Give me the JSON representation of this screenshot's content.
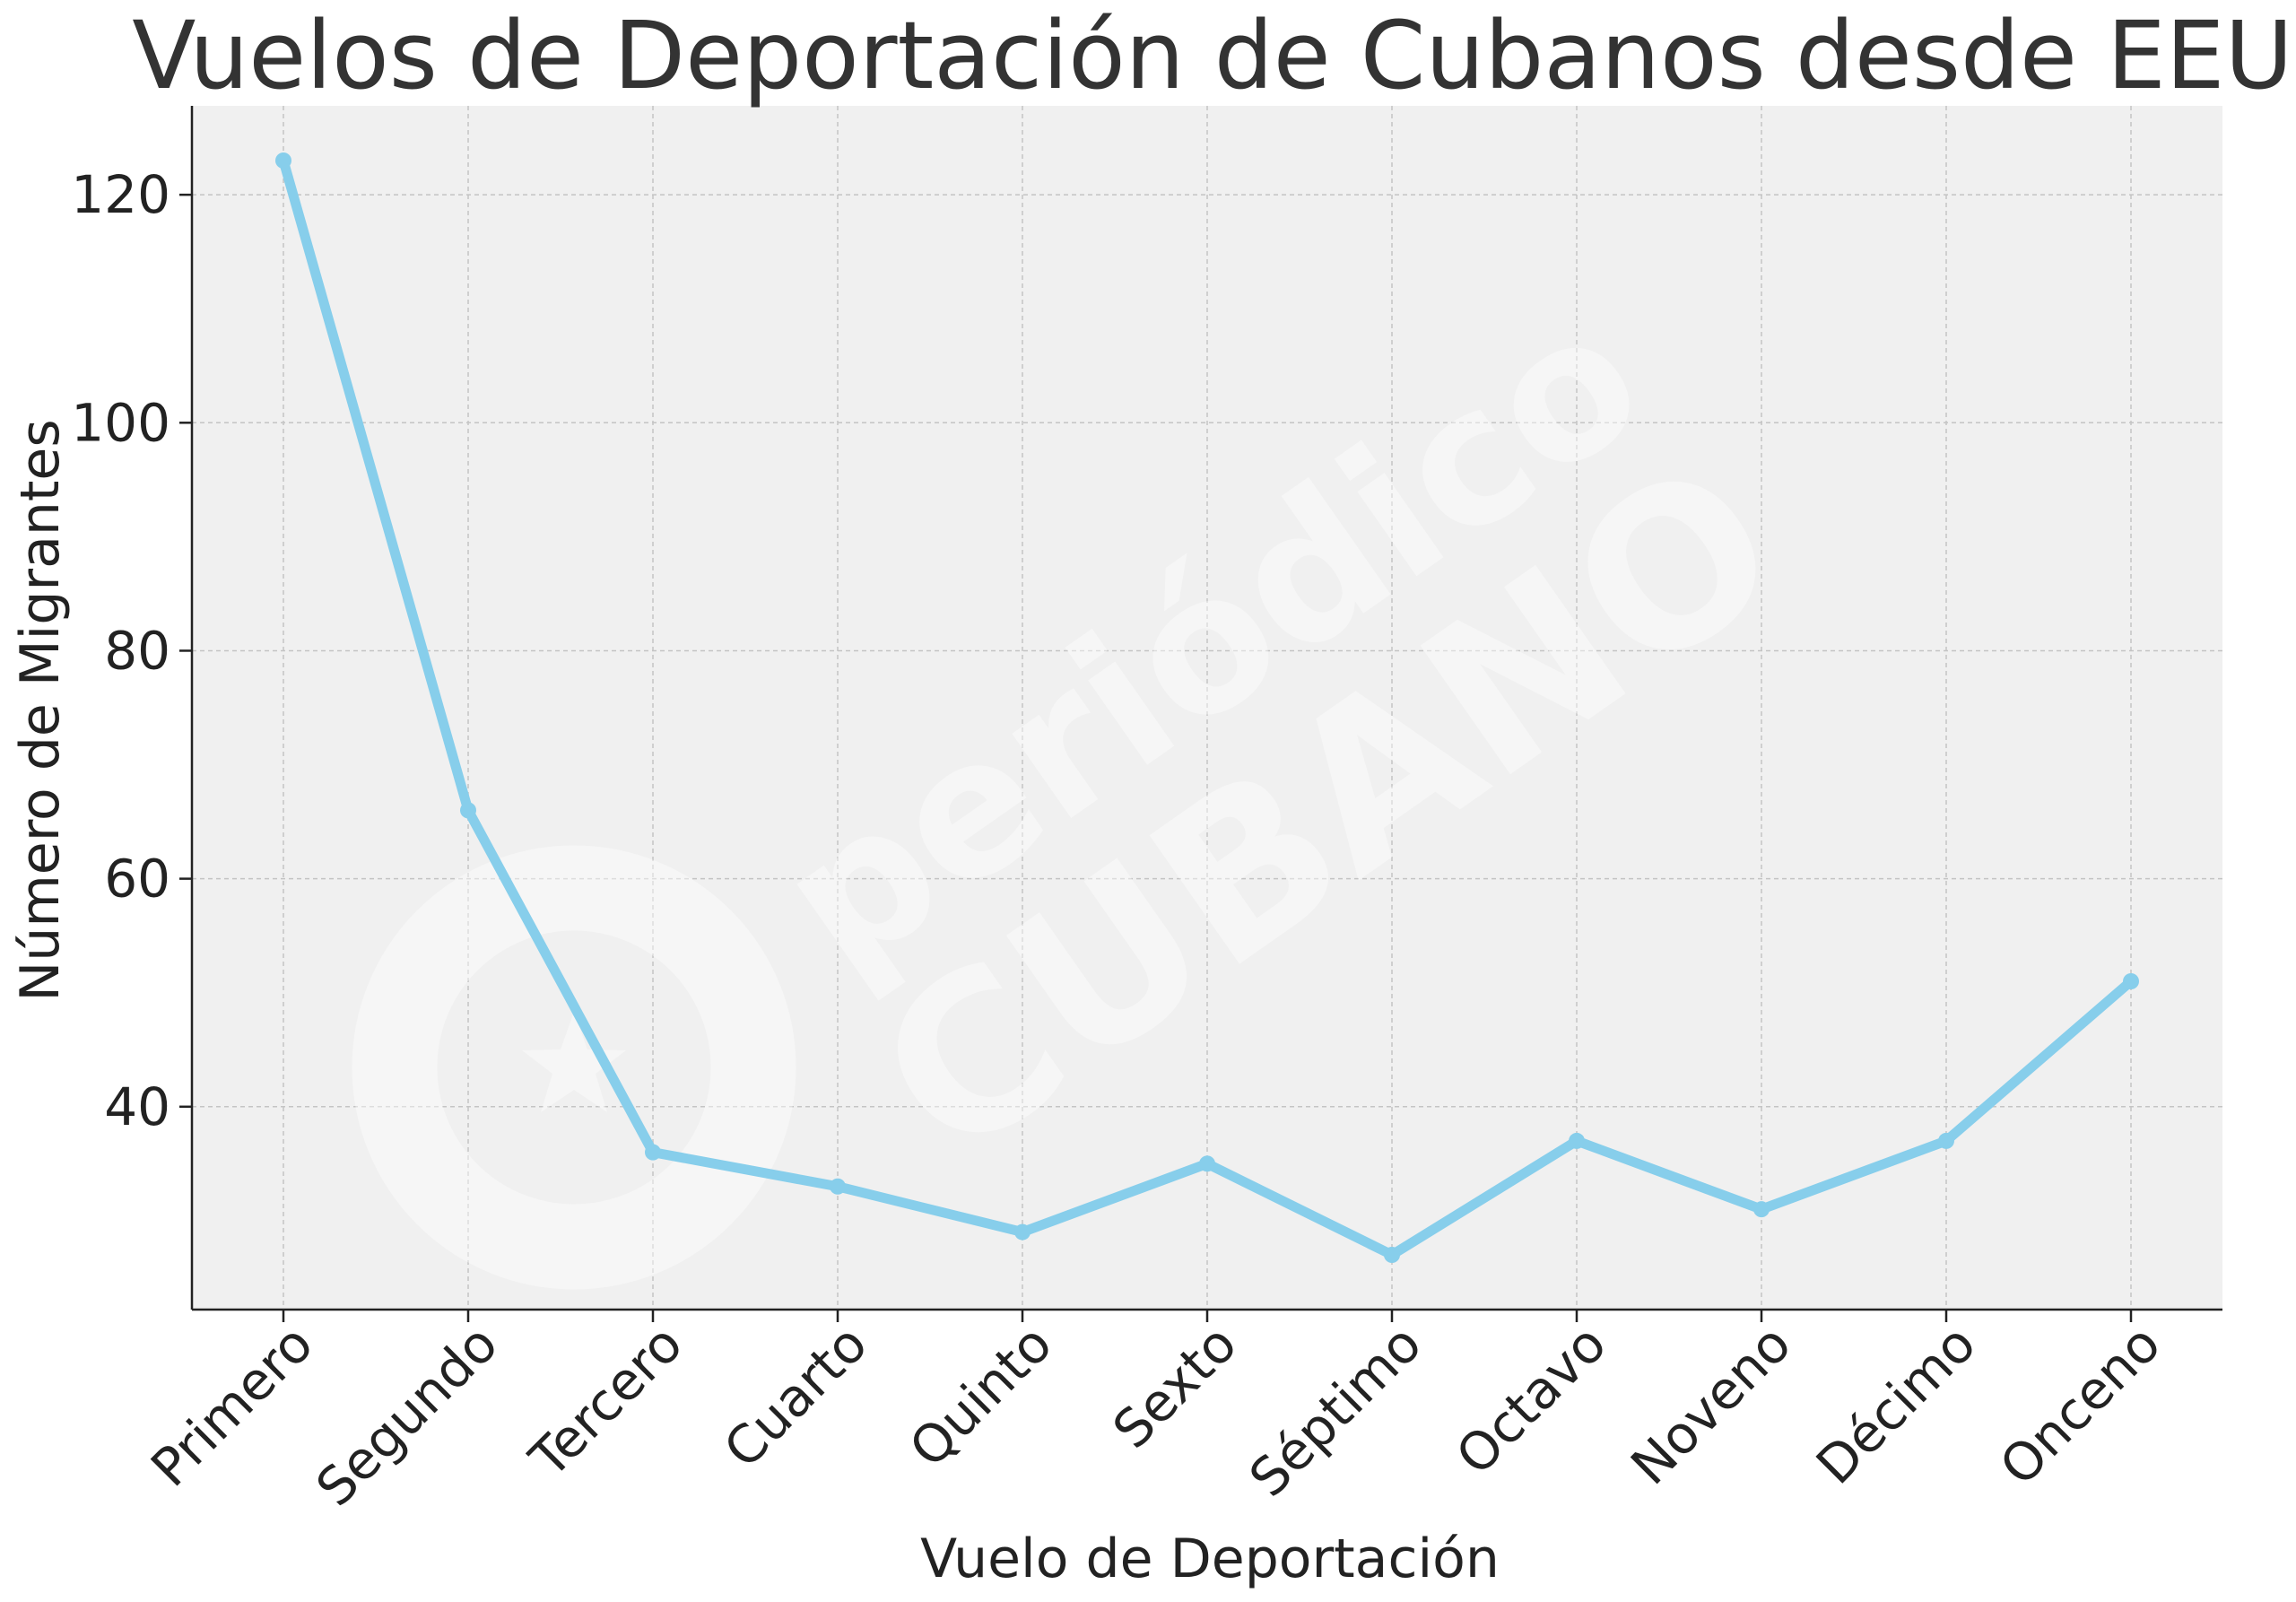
{
  "chart_data": {
    "type": "line",
    "title": "Vuelos de Deportación de Cubanos desde EEUU",
    "xlabel": "Vuelo de Deportación",
    "ylabel": "Número de Migrantes",
    "categories": [
      "Primero",
      "Segundo",
      "Tercero",
      "Cuarto",
      "Quinto",
      "Sexto",
      "Séptimo",
      "Octavo",
      "Noveno",
      "Décimo",
      "Onceno"
    ],
    "series": [
      {
        "values": [
          123,
          66,
          36,
          33,
          29,
          35,
          27,
          37,
          31,
          37,
          51
        ],
        "color": "#87ceeb",
        "marker": "circle"
      }
    ],
    "ylim": [
      22.2,
      127.8
    ],
    "yticks": [
      40,
      60,
      80,
      100,
      120
    ],
    "grid": true,
    "legend": "none",
    "background_color": "#f0f0f0"
  },
  "watermark": {
    "line1": "periódico",
    "line2": "CUBANO",
    "icon": "star-swirl-logo-icon"
  }
}
